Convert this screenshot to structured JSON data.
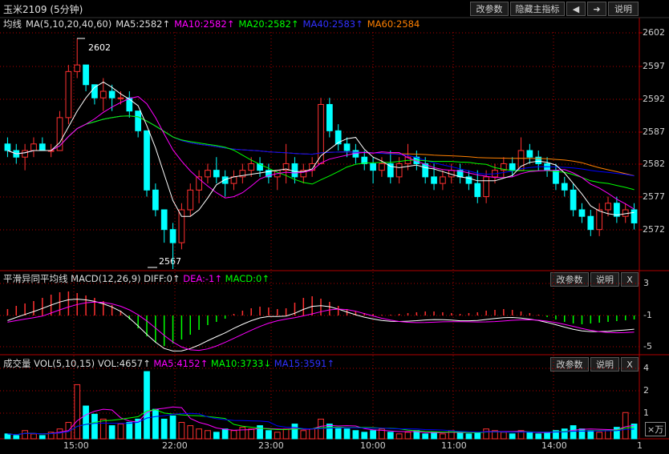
{
  "title": "玉米2109 (5分钟)",
  "toolbar": {
    "params": "改参数",
    "hide_indicator": "隐藏主指标",
    "prev": "◀",
    "next": "➜",
    "help": "说明"
  },
  "main": {
    "indicator_name": "均线",
    "ma_spec": "MA(5,10,20,40,60)",
    "ma5": "MA5:2582↑",
    "ma10": "MA10:2582↑",
    "ma20": "MA20:2582↑",
    "ma40": "MA40:2583↑",
    "ma60": "MA60:2584",
    "high_label": "2602",
    "low_label": "2567",
    "yticks": [
      "2602",
      "2597",
      "2592",
      "2587",
      "2582",
      "2577",
      "2572"
    ]
  },
  "macd": {
    "name": "平滑异同平均线",
    "spec": "MACD(12,26,9)",
    "diff": "DIFF:0↑",
    "dea": "DEA:-1↑",
    "macd": "MACD:0↑",
    "params": "改参数",
    "help": "说明",
    "close": "X",
    "yticks": [
      "3",
      "-1",
      "-5"
    ]
  },
  "vol": {
    "name": "成交量",
    "spec": "VOL(5,10,15)",
    "vol": "VOL:4657↑",
    "ma5": "MA5:4152↑",
    "ma10": "MA10:3733↓",
    "ma15": "MA15:3591↑",
    "params": "改参数",
    "help": "说明",
    "close": "X",
    "yticks": [
      "4",
      "2",
      "1"
    ],
    "unit": "×万"
  },
  "xaxis": [
    "15:00",
    "22:00",
    "23:00",
    "10:00",
    "11:00",
    "14:00",
    "1"
  ],
  "colors": {
    "up": "#ff3030",
    "down": "#00ffff",
    "ma5": "#ffffff",
    "ma10": "#ff00ff",
    "ma20": "#00ff00",
    "ma40": "#0000ff",
    "ma60": "#ff8000",
    "frame": "#b00000"
  },
  "chart_data": {
    "type": "candlestick",
    "ylim": [
      2567,
      2603
    ],
    "candles": [
      [
        2586,
        2587,
        2584,
        2585
      ],
      [
        2585,
        2586,
        2583,
        2584
      ],
      [
        2584,
        2586,
        2582,
        2585
      ],
      [
        2585,
        2587,
        2584,
        2586
      ],
      [
        2586,
        2587,
        2585,
        2585
      ],
      [
        2585,
        2586,
        2584,
        2585
      ],
      [
        2585,
        2591,
        2585,
        2590
      ],
      [
        2590,
        2598,
        2589,
        2597
      ],
      [
        2597,
        2602,
        2596,
        2598
      ],
      [
        2598,
        2598,
        2594,
        2595
      ],
      [
        2595,
        2595,
        2592,
        2593
      ],
      [
        2593,
        2596,
        2591,
        2594
      ],
      [
        2594,
        2595,
        2591,
        2593
      ],
      [
        2593,
        2594,
        2592,
        2593
      ],
      [
        2593,
        2594,
        2590,
        2591
      ],
      [
        2591,
        2591,
        2587,
        2588
      ],
      [
        2588,
        2588,
        2578,
        2579
      ],
      [
        2579,
        2580,
        2575,
        2576
      ],
      [
        2576,
        2576,
        2571,
        2573
      ],
      [
        2573,
        2574,
        2567,
        2571
      ],
      [
        2571,
        2577,
        2570,
        2576
      ],
      [
        2576,
        2580,
        2575,
        2579
      ],
      [
        2579,
        2582,
        2577,
        2581
      ],
      [
        2581,
        2583,
        2580,
        2582
      ],
      [
        2582,
        2584,
        2580,
        2581
      ],
      [
        2581,
        2582,
        2578,
        2580
      ],
      [
        2580,
        2582,
        2579,
        2581
      ],
      [
        2581,
        2583,
        2580,
        2582
      ],
      [
        2582,
        2584,
        2581,
        2583
      ],
      [
        2583,
        2584,
        2581,
        2582
      ],
      [
        2582,
        2583,
        2580,
        2581
      ],
      [
        2581,
        2582,
        2579,
        2582
      ],
      [
        2582,
        2586,
        2580,
        2583
      ],
      [
        2583,
        2584,
        2580,
        2581
      ],
      [
        2581,
        2583,
        2580,
        2582
      ],
      [
        2582,
        2584,
        2581,
        2583
      ],
      [
        2583,
        2593,
        2583,
        2592
      ],
      [
        2592,
        2593,
        2587,
        2588
      ],
      [
        2588,
        2589,
        2585,
        2586
      ],
      [
        2586,
        2587,
        2584,
        2585
      ],
      [
        2585,
        2586,
        2583,
        2584
      ],
      [
        2584,
        2585,
        2582,
        2583
      ],
      [
        2583,
        2584,
        2580,
        2582
      ],
      [
        2582,
        2584,
        2581,
        2583
      ],
      [
        2583,
        2585,
        2580,
        2581
      ],
      [
        2581,
        2584,
        2580,
        2583
      ],
      [
        2583,
        2586,
        2582,
        2584
      ],
      [
        2584,
        2585,
        2582,
        2583
      ],
      [
        2583,
        2584,
        2580,
        2581
      ],
      [
        2581,
        2583,
        2579,
        2580
      ],
      [
        2580,
        2582,
        2579,
        2581
      ],
      [
        2581,
        2583,
        2580,
        2582
      ],
      [
        2582,
        2583,
        2580,
        2581
      ],
      [
        2581,
        2582,
        2579,
        2580
      ],
      [
        2580,
        2582,
        2577,
        2578
      ],
      [
        2578,
        2582,
        2577,
        2581
      ],
      [
        2581,
        2583,
        2580,
        2582
      ],
      [
        2582,
        2584,
        2581,
        2583
      ],
      [
        2583,
        2584,
        2581,
        2582
      ],
      [
        2582,
        2587,
        2582,
        2585
      ],
      [
        2585,
        2586,
        2583,
        2584
      ],
      [
        2584,
        2585,
        2582,
        2583
      ],
      [
        2583,
        2584,
        2581,
        2582
      ],
      [
        2582,
        2583,
        2579,
        2580
      ],
      [
        2580,
        2581,
        2578,
        2579
      ],
      [
        2579,
        2580,
        2575,
        2576
      ],
      [
        2576,
        2577,
        2574,
        2575
      ],
      [
        2575,
        2576,
        2572,
        2573
      ],
      [
        2573,
        2577,
        2572,
        2576
      ],
      [
        2576,
        2578,
        2575,
        2577
      ],
      [
        2577,
        2578,
        2574,
        2575
      ],
      [
        2575,
        2577,
        2574,
        2576
      ],
      [
        2576,
        2577,
        2573,
        2574
      ]
    ],
    "macd_hist": [
      0.8,
      1.2,
      1.5,
      1.8,
      2.2,
      2.6,
      2.9,
      3.0,
      2.8,
      2.5,
      2.2,
      1.8,
      1.3,
      0.6,
      -0.5,
      -1.6,
      -2.6,
      -3.4,
      -3.8,
      -3.5,
      -3.0,
      -2.4,
      -1.8,
      -1.2,
      -0.8,
      -0.4,
      0.2,
      0.6,
      0.9,
      1.1,
      1.0,
      0.8,
      0.9,
      1.6,
      2.2,
      2.4,
      2.1,
      1.7,
      1.2,
      0.8,
      0.5,
      0.3,
      0.2,
      0.1,
      0.1,
      0.2,
      0.3,
      0.4,
      0.5,
      0.5,
      0.4,
      0.3,
      0.2,
      0.3,
      0.4,
      0.6,
      0.7,
      0.8,
      0.7,
      0.5,
      0.3,
      0.1,
      -0.2,
      -0.5,
      -0.8,
      -1.0,
      -1.1,
      -1.0,
      -0.9,
      -0.8,
      -0.7,
      -0.6,
      -0.5
    ],
    "volume": [
      0.3,
      0.2,
      0.5,
      0.3,
      0.2,
      0.4,
      0.6,
      1.0,
      3.3,
      2.0,
      1.5,
      1.2,
      0.8,
      0.9,
      1.0,
      1.2,
      4.1,
      1.8,
      1.2,
      1.4,
      1.0,
      0.8,
      0.6,
      0.5,
      0.4,
      0.6,
      0.5,
      0.7,
      0.6,
      0.8,
      0.5,
      0.4,
      0.6,
      0.9,
      0.5,
      0.6,
      1.2,
      0.9,
      0.7,
      0.6,
      0.5,
      0.4,
      0.5,
      0.6,
      0.4,
      0.3,
      0.4,
      0.5,
      0.3,
      0.4,
      0.3,
      0.5,
      0.4,
      0.3,
      0.4,
      0.6,
      0.5,
      0.4,
      0.3,
      0.5,
      0.4,
      0.3,
      0.4,
      0.5,
      0.6,
      0.8,
      0.6,
      0.5,
      0.4,
      0.5,
      0.7,
      1.6,
      0.9
    ]
  }
}
